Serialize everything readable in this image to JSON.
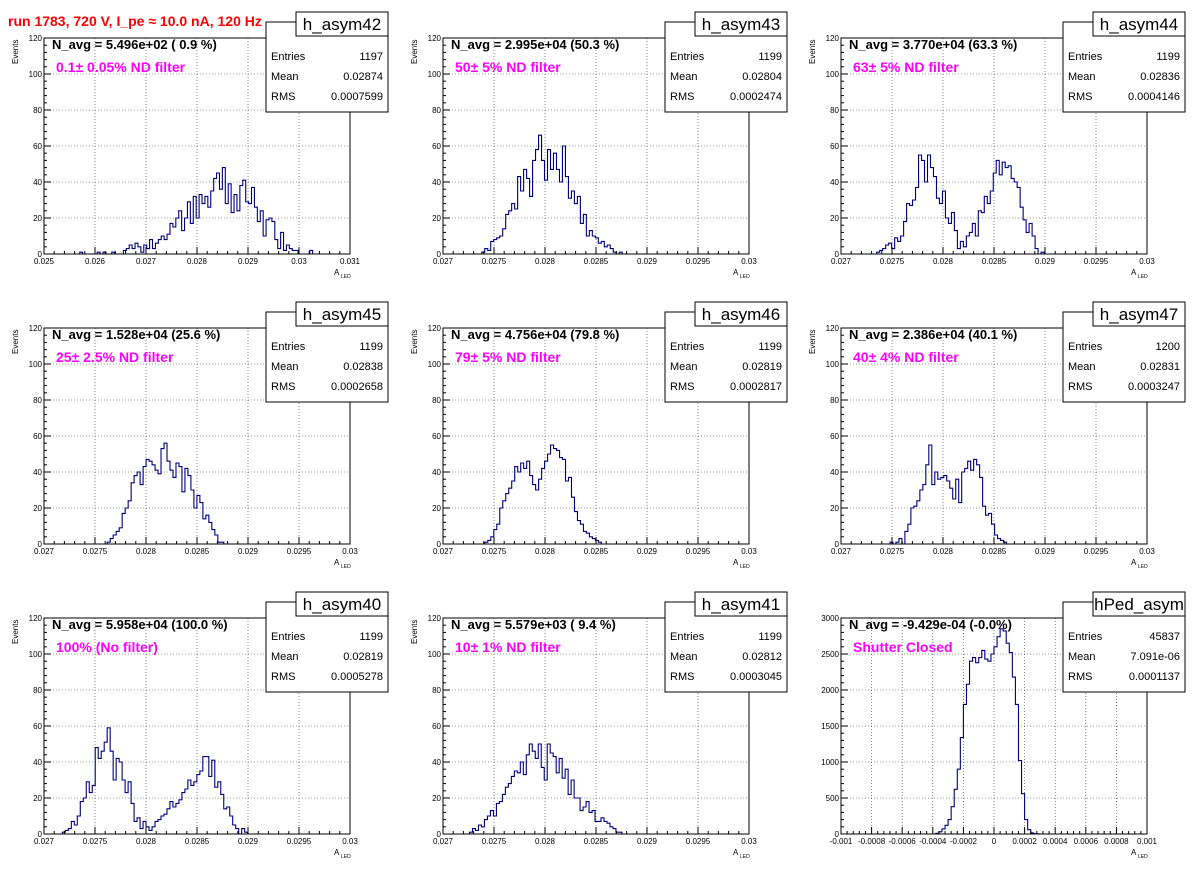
{
  "run_title": "run 1783,   720 V, I_pe ≈ 10.0 nA, 120 Hz",
  "stats_labels": {
    "entries": "Entries",
    "mean": "Mean",
    "rms": "RMS"
  },
  "chart_data": [
    {
      "type": "histogram",
      "name": "h_asym42",
      "navg": "N_avg = 5.496e+02 ( 0.9 %)",
      "filter": "0.1± 0.05% ND filter",
      "entries": "1197",
      "mean": "0.02874",
      "rms": "0.0007599",
      "xlabel": "A",
      "xlabel_sub": "LED",
      "ylabel": "Events",
      "xlim": [
        0.025,
        0.031
      ],
      "ylim": [
        0,
        120
      ],
      "xticks": [
        "0.025",
        "0.026",
        "0.027",
        "0.028",
        "0.029",
        "0.03",
        "0.031"
      ],
      "yticks": [
        "0",
        "20",
        "40",
        "60",
        "80",
        "100",
        "120"
      ],
      "bin_start": 0.0257,
      "bin_width": 5.71e-05,
      "values": [
        1,
        0,
        0,
        0,
        0,
        0,
        1,
        0,
        1,
        0,
        0,
        1,
        0,
        0,
        0,
        2,
        3,
        5,
        3,
        6,
        4,
        1,
        5,
        3,
        8,
        3,
        6,
        8,
        10,
        8,
        11,
        17,
        15,
        20,
        24,
        13,
        20,
        29,
        17,
        32,
        20,
        33,
        28,
        32,
        26,
        35,
        42,
        45,
        36,
        48,
        28,
        39,
        23,
        33,
        24,
        38,
        41,
        29,
        28,
        37,
        26,
        18,
        24,
        10,
        19,
        20,
        18,
        8,
        3,
        12,
        2,
        5,
        3,
        2,
        2,
        0,
        0,
        0,
        0,
        2
      ]
    },
    {
      "type": "histogram",
      "name": "h_asym43",
      "navg": "N_avg = 2.995e+04 (50.3 %)",
      "filter": "50± 5% ND filter",
      "entries": "1199",
      "mean": "0.02804",
      "rms": "0.0002474",
      "xlabel": "A",
      "xlabel_sub": "LED",
      "ylabel": "Events",
      "xlim": [
        0.027,
        0.03
      ],
      "ylim": [
        0,
        120
      ],
      "xticks": [
        "0.027",
        "0.0275",
        "0.028",
        "0.0285",
        "0.029",
        "0.0295",
        "0.03"
      ],
      "yticks": [
        "0",
        "20",
        "40",
        "60",
        "80",
        "100",
        "120"
      ],
      "bin_start": 0.02738,
      "bin_width": 2.93e-05,
      "values": [
        1,
        3,
        2,
        7,
        8,
        9,
        10,
        14,
        22,
        24,
        28,
        25,
        43,
        35,
        47,
        42,
        32,
        52,
        58,
        66,
        52,
        41,
        58,
        47,
        56,
        47,
        40,
        60,
        43,
        31,
        35,
        28,
        32,
        17,
        22,
        10,
        13,
        10,
        9,
        6,
        7,
        4,
        5,
        3,
        1,
        0,
        1
      ]
    },
    {
      "type": "histogram",
      "name": "h_asym44",
      "navg": "N_avg = 3.770e+04 (63.3 %)",
      "filter": "63± 5% ND filter",
      "entries": "1199",
      "mean": "0.02836",
      "rms": "0.0004146",
      "xlabel": "A",
      "xlabel_sub": "LED",
      "ylabel": "Events",
      "xlim": [
        0.027,
        0.03
      ],
      "ylim": [
        0,
        120
      ],
      "xticks": [
        "0.027",
        "0.0275",
        "0.028",
        "0.0285",
        "0.029",
        "0.0295",
        "0.03"
      ],
      "yticks": [
        "0",
        "20",
        "40",
        "60",
        "80",
        "100",
        "120"
      ],
      "bin_start": 0.02735,
      "bin_width": 2.93e-05,
      "values": [
        1,
        2,
        3,
        5,
        6,
        3,
        9,
        7,
        10,
        18,
        28,
        27,
        30,
        37,
        55,
        52,
        40,
        55,
        48,
        43,
        31,
        28,
        35,
        20,
        17,
        23,
        13,
        3,
        7,
        4,
        10,
        12,
        17,
        10,
        24,
        23,
        32,
        28,
        35,
        45,
        52,
        44,
        51,
        48,
        49,
        42,
        40,
        37,
        26,
        19,
        12,
        17,
        10,
        3,
        0,
        1
      ]
    },
    {
      "type": "histogram",
      "name": "h_asym45",
      "navg": "N_avg = 1.528e+04 (25.6 %)",
      "filter": "25± 2.5% ND filter",
      "entries": "1199",
      "mean": "0.02838",
      "rms": "0.0002658",
      "xlabel": "A",
      "xlabel_sub": "LED",
      "ylabel": "Events",
      "xlim": [
        0.027,
        0.03
      ],
      "ylim": [
        0,
        120
      ],
      "xticks": [
        "0.027",
        "0.0275",
        "0.028",
        "0.0285",
        "0.029",
        "0.0295",
        "0.03"
      ],
      "yticks": [
        "0",
        "20",
        "40",
        "60",
        "80",
        "100",
        "120"
      ],
      "bin_start": 0.02762,
      "bin_width": 2.93e-05,
      "values": [
        1,
        3,
        5,
        7,
        9,
        17,
        20,
        24,
        34,
        38,
        40,
        33,
        43,
        47,
        46,
        44,
        41,
        39,
        53,
        56,
        46,
        41,
        37,
        45,
        43,
        29,
        42,
        38,
        30,
        20,
        27,
        23,
        14,
        16,
        12,
        8,
        5,
        1,
        1
      ]
    },
    {
      "type": "histogram",
      "name": "h_asym46",
      "navg": "N_avg = 4.756e+04 (79.8 %)",
      "filter": "79± 5% ND filter",
      "entries": "1199",
      "mean": "0.02819",
      "rms": "0.0002817",
      "xlabel": "A",
      "xlabel_sub": "LED",
      "ylabel": "Events",
      "xlim": [
        0.027,
        0.03
      ],
      "ylim": [
        0,
        120
      ],
      "xticks": [
        "0.027",
        "0.0275",
        "0.028",
        "0.0285",
        "0.029",
        "0.0295",
        "0.03"
      ],
      "yticks": [
        "0",
        "20",
        "40",
        "60",
        "80",
        "100",
        "120"
      ],
      "bin_start": 0.02741,
      "bin_width": 2.93e-05,
      "values": [
        1,
        2,
        4,
        8,
        11,
        20,
        24,
        28,
        31,
        35,
        43,
        40,
        45,
        42,
        46,
        38,
        33,
        30,
        36,
        42,
        46,
        50,
        55,
        53,
        52,
        48,
        47,
        35,
        37,
        26,
        18,
        13,
        11,
        7,
        6,
        4,
        3,
        2,
        1
      ]
    },
    {
      "type": "histogram",
      "name": "h_asym47",
      "navg": "N_avg = 2.386e+04 (40.1 %)",
      "filter": "40± 4% ND filter",
      "entries": "1200",
      "mean": "0.02831",
      "rms": "0.0003247",
      "xlabel": "A",
      "xlabel_sub": "LED",
      "ylabel": "Events",
      "xlim": [
        0.027,
        0.03
      ],
      "ylim": [
        0,
        120
      ],
      "xticks": [
        "0.027",
        "0.0275",
        "0.028",
        "0.0285",
        "0.029",
        "0.0295",
        "0.03"
      ],
      "yticks": [
        "0",
        "20",
        "40",
        "60",
        "80",
        "100",
        "120"
      ],
      "bin_start": 0.02748,
      "bin_width": 2.93e-05,
      "values": [
        1,
        0,
        1,
        3,
        0,
        7,
        11,
        20,
        21,
        24,
        30,
        33,
        44,
        55,
        33,
        40,
        36,
        37,
        38,
        35,
        31,
        25,
        36,
        23,
        40,
        42,
        46,
        41,
        47,
        44,
        37,
        21,
        16,
        17,
        11,
        5,
        3,
        2,
        1
      ]
    },
    {
      "type": "histogram",
      "name": "h_asym40",
      "navg": "N_avg = 5.958e+04 (100.0 %)",
      "filter": "100% (No filter)",
      "entries": "1199",
      "mean": "0.02819",
      "rms": "0.0005278",
      "xlabel": "A",
      "xlabel_sub": "LED",
      "ylabel": "Events",
      "xlim": [
        0.027,
        0.03
      ],
      "ylim": [
        0,
        120
      ],
      "xticks": [
        "0.027",
        "0.0275",
        "0.028",
        "0.0285",
        "0.029",
        "0.0295",
        "0.03"
      ],
      "yticks": [
        "0",
        "20",
        "40",
        "60",
        "80",
        "100",
        "120"
      ],
      "bin_start": 0.02718,
      "bin_width": 2.93e-05,
      "values": [
        1,
        2,
        3,
        7,
        5,
        10,
        18,
        20,
        29,
        23,
        27,
        48,
        42,
        46,
        51,
        59,
        46,
        30,
        42,
        40,
        30,
        23,
        29,
        17,
        7,
        9,
        3,
        7,
        4,
        2,
        4,
        7,
        8,
        10,
        11,
        14,
        18,
        15,
        17,
        19,
        23,
        25,
        30,
        27,
        29,
        33,
        35,
        43,
        43,
        32,
        41,
        26,
        29,
        22,
        14,
        15,
        10,
        5,
        3,
        0,
        3,
        1
      ]
    },
    {
      "type": "histogram",
      "name": "h_asym41",
      "navg": "N_avg = 5.579e+03 ( 9.4 %)",
      "filter": "10± 1% ND filter",
      "entries": "1199",
      "mean": "0.02812",
      "rms": "0.0003045",
      "xlabel": "A",
      "xlabel_sub": "LED",
      "ylabel": "Events",
      "xlim": [
        0.027,
        0.03
      ],
      "ylim": [
        0,
        120
      ],
      "xticks": [
        "0.027",
        "0.0275",
        "0.028",
        "0.0285",
        "0.029",
        "0.0295",
        "0.03"
      ],
      "yticks": [
        "0",
        "20",
        "40",
        "60",
        "80",
        "100",
        "120"
      ],
      "bin_start": 0.02726,
      "bin_width": 2.93e-05,
      "values": [
        1,
        3,
        2,
        5,
        4,
        8,
        10,
        13,
        10,
        17,
        18,
        22,
        26,
        28,
        32,
        35,
        34,
        40,
        33,
        44,
        50,
        46,
        42,
        50,
        37,
        30,
        50,
        45,
        43,
        34,
        42,
        31,
        36,
        22,
        30,
        20,
        20,
        13,
        15,
        18,
        12,
        13,
        7,
        7,
        9,
        7,
        6,
        4,
        3,
        1,
        1
      ]
    },
    {
      "type": "histogram",
      "name": "hPed_asym",
      "navg": "N_avg = -9.429e-04 (-0.0%)",
      "filter": "Shutter Closed",
      "entries": "45837",
      "mean": "7.091e-06",
      "rms": "0.0001137",
      "xlabel": "A",
      "xlabel_sub": "LED",
      "ylabel": "",
      "xlim": [
        -0.001,
        0.001
      ],
      "ylim": [
        0,
        3000
      ],
      "xticks": [
        "-0.001",
        "-0.0008",
        "-0.0006",
        "-0.0004",
        "-0.0002",
        "0",
        "0.0002",
        "0.0004",
        "0.0006",
        "0.0008",
        "0.001"
      ],
      "yticks": [
        "0",
        "500",
        "1000",
        "1500",
        "2000",
        "2500",
        "3000"
      ],
      "bin_start": -0.00038,
      "bin_width": 2e-05,
      "values": [
        10,
        30,
        70,
        120,
        200,
        380,
        620,
        900,
        1340,
        1800,
        2080,
        2400,
        2450,
        2380,
        2450,
        2550,
        2430,
        2400,
        2500,
        2600,
        2740,
        2850,
        2820,
        2650,
        2520,
        2180,
        1800,
        1020,
        560,
        200,
        60,
        15,
        5,
        2
      ]
    }
  ]
}
